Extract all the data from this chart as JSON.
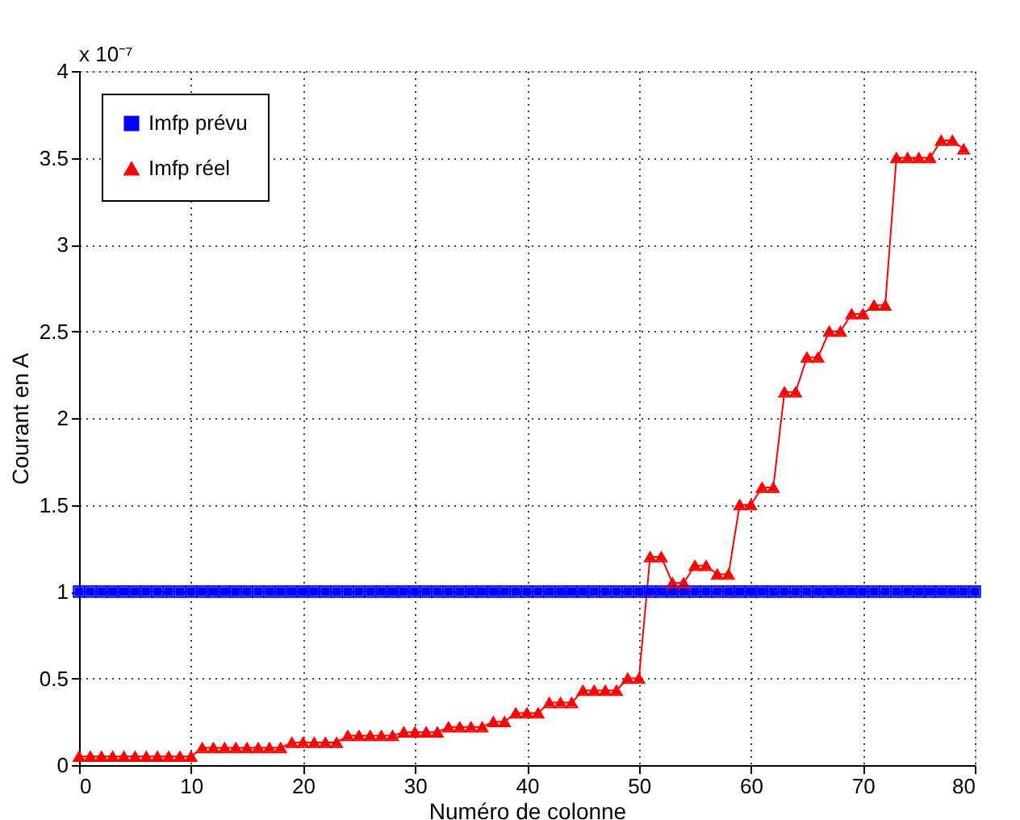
{
  "chart_data": {
    "type": "line",
    "xlabel": "Numéro de colonne",
    "ylabel": "Courant en A",
    "annotations": [
      "x 10⁻⁷"
    ],
    "xlim": [
      0,
      80
    ],
    "xticks": [
      0,
      10,
      20,
      30,
      40,
      50,
      60,
      70,
      80
    ],
    "ylim": [
      0,
      4
    ],
    "yticks": [
      0,
      0.5,
      1,
      1.5,
      2,
      2.5,
      3,
      3.5,
      4
    ],
    "grid": true,
    "legend": "top left",
    "series": [
      {
        "name": "Imfp prévu",
        "color": "#0000ff",
        "marker": "square",
        "x": [
          0,
          1,
          2,
          3,
          4,
          5,
          6,
          7,
          8,
          9,
          10,
          11,
          12,
          13,
          14,
          15,
          16,
          17,
          18,
          19,
          20,
          21,
          22,
          23,
          24,
          25,
          26,
          27,
          28,
          29,
          30,
          31,
          32,
          33,
          34,
          35,
          36,
          37,
          38,
          39,
          40,
          41,
          42,
          43,
          44,
          45,
          46,
          47,
          48,
          49,
          50,
          51,
          52,
          53,
          54,
          55,
          56,
          57,
          58,
          59,
          60,
          61,
          62,
          63,
          64,
          65,
          66,
          67,
          68,
          69,
          70,
          71,
          72,
          73,
          74,
          75,
          76,
          77,
          78,
          79,
          80
        ],
        "values": [
          1,
          1,
          1,
          1,
          1,
          1,
          1,
          1,
          1,
          1,
          1,
          1,
          1,
          1,
          1,
          1,
          1,
          1,
          1,
          1,
          1,
          1,
          1,
          1,
          1,
          1,
          1,
          1,
          1,
          1,
          1,
          1,
          1,
          1,
          1,
          1,
          1,
          1,
          1,
          1,
          1,
          1,
          1,
          1,
          1,
          1,
          1,
          1,
          1,
          1,
          1,
          1,
          1,
          1,
          1,
          1,
          1,
          1,
          1,
          1,
          1,
          1,
          1,
          1,
          1,
          1,
          1,
          1,
          1,
          1,
          1,
          1,
          1,
          1,
          1,
          1,
          1,
          1,
          1,
          1,
          1
        ]
      },
      {
        "name": "Imfp réel",
        "color": "#ff0000",
        "marker": "triangle",
        "x": [
          0,
          1,
          2,
          3,
          4,
          5,
          6,
          7,
          8,
          9,
          10,
          11,
          12,
          13,
          14,
          15,
          16,
          17,
          18,
          19,
          20,
          21,
          22,
          23,
          24,
          25,
          26,
          27,
          28,
          29,
          30,
          31,
          32,
          33,
          34,
          35,
          36,
          37,
          38,
          39,
          40,
          41,
          42,
          43,
          44,
          45,
          46,
          47,
          48,
          49,
          50,
          51,
          52,
          53,
          54,
          55,
          56,
          57,
          58,
          59,
          60,
          61,
          62,
          63,
          64,
          65,
          66,
          67,
          68,
          69,
          70,
          71,
          72,
          73,
          74,
          75,
          76,
          77,
          78,
          79
        ],
        "values": [
          0.05,
          0.05,
          0.05,
          0.05,
          0.05,
          0.05,
          0.05,
          0.05,
          0.05,
          0.05,
          0.05,
          0.1,
          0.1,
          0.1,
          0.1,
          0.1,
          0.1,
          0.1,
          0.1,
          0.13,
          0.13,
          0.13,
          0.13,
          0.13,
          0.17,
          0.17,
          0.17,
          0.17,
          0.17,
          0.19,
          0.19,
          0.19,
          0.19,
          0.22,
          0.22,
          0.22,
          0.22,
          0.25,
          0.25,
          0.3,
          0.3,
          0.3,
          0.36,
          0.36,
          0.36,
          0.43,
          0.43,
          0.43,
          0.43,
          0.5,
          0.5,
          1.2,
          1.2,
          1.05,
          1.05,
          1.15,
          1.15,
          1.1,
          1.1,
          1.5,
          1.5,
          1.6,
          1.6,
          2.15,
          2.15,
          2.35,
          2.35,
          2.5,
          2.5,
          2.6,
          2.6,
          2.65,
          2.65,
          3.5,
          3.5,
          3.5,
          3.5,
          3.6,
          3.6,
          3.55
        ]
      }
    ]
  }
}
